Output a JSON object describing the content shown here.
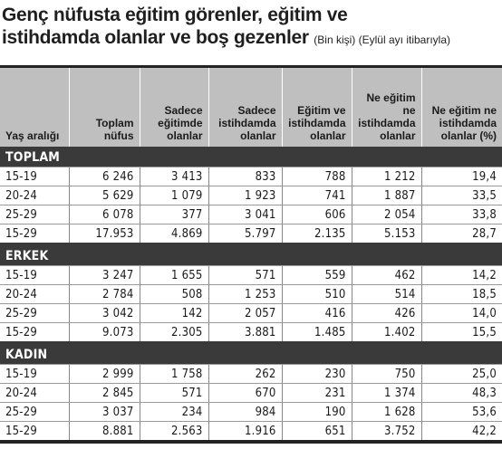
{
  "title": {
    "line1": "Genç nüfusta eğitim görenler, eğitim ve",
    "line2": "istihdamda olanlar ve boş gezenler",
    "subtitle": "(Bin kişi) (Eylül ayı itibarıyla)"
  },
  "headers": [
    "Yaş aralığı",
    "Toplam nüfus",
    "Sadece eğitimde olanlar",
    "Sadece istihdamda olanlar",
    "Eğitim ve istihdamda olanlar",
    "Ne eğitim ne istihdamda olanlar",
    "Ne eğitim ne istihdamda olanlar (%)"
  ],
  "sections": [
    {
      "label": "TOPLAM",
      "rows": [
        [
          "15-19",
          "6 246",
          "3 413",
          "833",
          "788",
          "1 212",
          "19,4"
        ],
        [
          "20-24",
          "5 629",
          "1 079",
          "1 923",
          "741",
          "1 887",
          "33,5"
        ],
        [
          "25-29",
          "6 078",
          "377",
          "3 041",
          "606",
          "2 054",
          "33,8"
        ],
        [
          "15-29",
          "17.953",
          "4.869",
          "5.797",
          "2.135",
          "5.153",
          "28,7"
        ]
      ]
    },
    {
      "label": "ERKEK",
      "rows": [
        [
          "15-19",
          "3 247",
          "1 655",
          "571",
          "559",
          "462",
          "14,2"
        ],
        [
          "20-24",
          "2 784",
          "508",
          "1 253",
          "510",
          "514",
          "18,5"
        ],
        [
          "25-29",
          "3 042",
          "142",
          "2 057",
          "416",
          "426",
          "14,0"
        ],
        [
          "15-29",
          "9.073",
          "2.305",
          "3.881",
          "1.485",
          "1.402",
          "15,5"
        ]
      ]
    },
    {
      "label": "KADIN",
      "rows": [
        [
          "15-19",
          "2 999",
          "1 758",
          "262",
          "230",
          "750",
          "25,0"
        ],
        [
          "20-24",
          "2 845",
          "571",
          "670",
          "231",
          "1 374",
          "48,3"
        ],
        [
          "25-29",
          "3 037",
          "234",
          "984",
          "190",
          "1 628",
          "53,6"
        ],
        [
          "15-29",
          "8.881",
          "2.563",
          "1.916",
          "651",
          "3.752",
          "42,2"
        ]
      ]
    }
  ]
}
